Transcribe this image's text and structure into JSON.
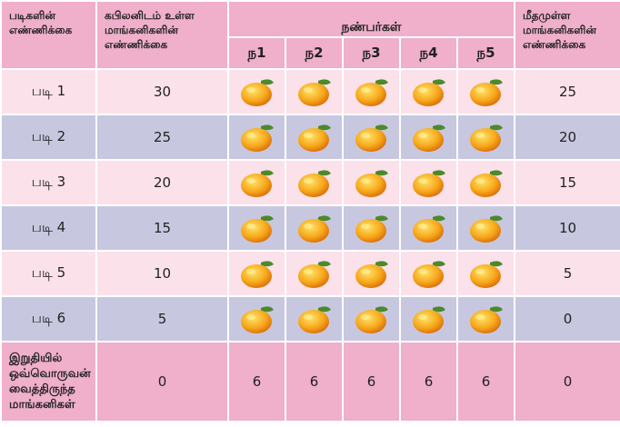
{
  "header": {
    "steps": [
      "படிகளின்",
      "எண்ணிக்கை"
    ],
    "held": [
      "கபிலனிடம் உள்ள",
      "மாங்கனிகளின்",
      "எண்ணிக்கை"
    ],
    "friends": "நண்பர்கள்",
    "friend_names": [
      "ந1",
      "ந2",
      "ந3",
      "ந4",
      "ந5"
    ],
    "remaining": [
      "மீதமுள்ள",
      "மாங்கனிகளின்",
      "எண்ணிக்கை"
    ]
  },
  "rows": [
    {
      "step": "படி 1",
      "held": 30,
      "remaining": 25
    },
    {
      "step": "படி 2",
      "held": 25,
      "remaining": 20
    },
    {
      "step": "படி 3",
      "held": 20,
      "remaining": 15
    },
    {
      "step": "படி 4",
      "held": 15,
      "remaining": 10
    },
    {
      "step": "படி 5",
      "held": 10,
      "remaining": 5
    },
    {
      "step": "படி 6",
      "held": 5,
      "remaining": 0
    }
  ],
  "final": {
    "label": [
      "இறுதியில்",
      "ஒவ்வொருவன்",
      "வைத்திருந்த",
      "மாங்கனிகள்"
    ],
    "held": 0,
    "friends": [
      6,
      6,
      6,
      6,
      6
    ],
    "remaining": 0
  }
}
